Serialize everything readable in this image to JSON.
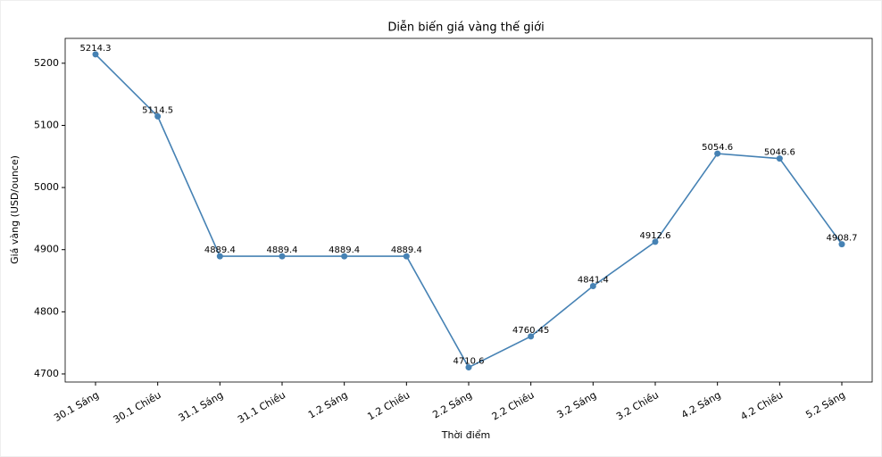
{
  "chart_data": {
    "type": "line",
    "title": "Diễn biến giá vàng thế giới",
    "x_label": "Thời điểm",
    "y_label": "Giá vàng (USD/ounce)",
    "categories": [
      "30.1 Sáng",
      "30.1 Chiều",
      "31.1 Sáng",
      "31.1 Chiều",
      "1.2 Sáng",
      "1.2 Chiều",
      "2.2 Sáng",
      "2.2 Chiều",
      "3.2 Sáng",
      "3.2 Chiều",
      "4.2 Sáng",
      "4.2 Chiều",
      "5.2 Sáng"
    ],
    "series": [
      {
        "name": "Giá vàng",
        "color": "#4682b4",
        "values": [
          5214.3,
          5114.5,
          4889.4,
          4889.4,
          4889.4,
          4889.4,
          4710.6,
          4760.45,
          4841.4,
          4912.6,
          5054.6,
          5046.6,
          4908.7
        ]
      }
    ],
    "ylim": [
      4687,
      5240
    ],
    "yticks": [
      4700,
      4800,
      4900,
      5000,
      5100,
      5200
    ],
    "grid": false
  }
}
